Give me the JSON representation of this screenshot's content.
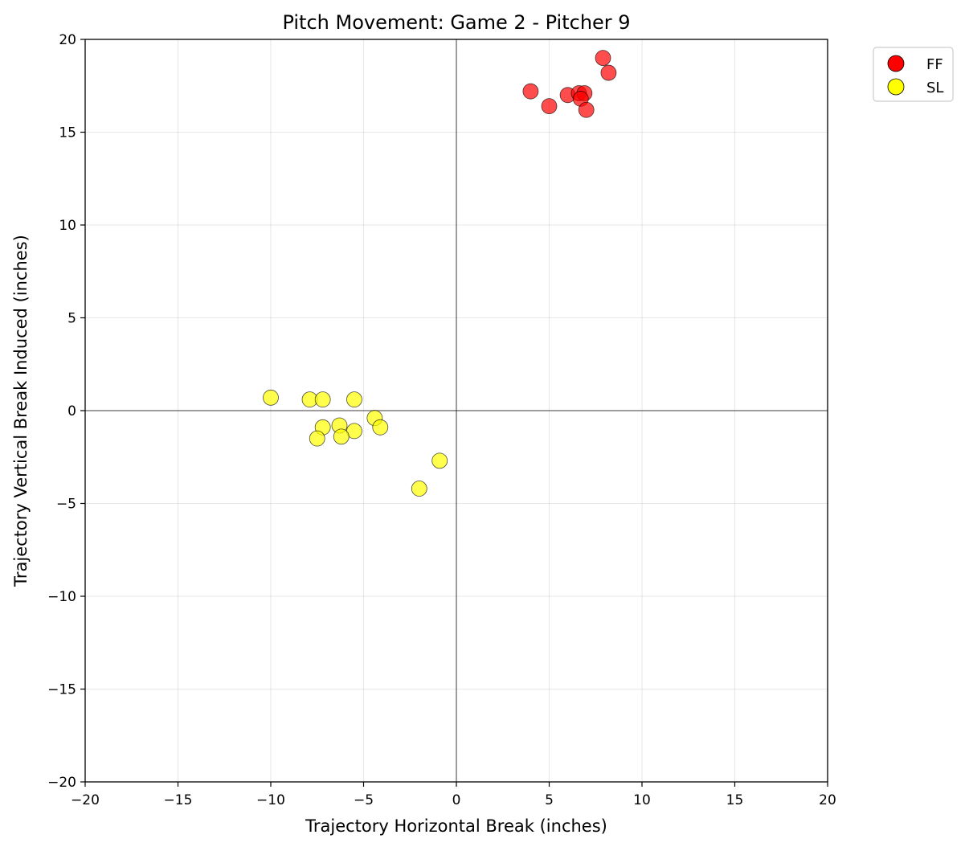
{
  "chart_data": {
    "type": "scatter",
    "title": "Pitch Movement: Game 2 - Pitcher 9",
    "xlabel": "Trajectory Horizontal Break (inches)",
    "ylabel": "Trajectory Vertical Break Induced (inches)",
    "xlim": [
      -20,
      20
    ],
    "ylim": [
      -20,
      20
    ],
    "xticks": [
      -20,
      -15,
      -10,
      -5,
      0,
      5,
      10,
      15,
      20
    ],
    "yticks": [
      -20,
      -15,
      -10,
      -5,
      0,
      5,
      10,
      15,
      20
    ],
    "grid": true,
    "legend_position": "outside-top-right",
    "series": [
      {
        "name": "FF",
        "color": "#ff0000",
        "points": [
          {
            "x": 7.9,
            "y": 19.0
          },
          {
            "x": 8.2,
            "y": 18.2
          },
          {
            "x": 4.0,
            "y": 17.2
          },
          {
            "x": 5.0,
            "y": 16.4
          },
          {
            "x": 6.0,
            "y": 17.0
          },
          {
            "x": 6.6,
            "y": 17.1
          },
          {
            "x": 6.9,
            "y": 17.1
          },
          {
            "x": 6.7,
            "y": 16.8
          },
          {
            "x": 7.0,
            "y": 16.2
          }
        ]
      },
      {
        "name": "SL",
        "color": "#ffff00",
        "points": [
          {
            "x": -10.0,
            "y": 0.7
          },
          {
            "x": -7.9,
            "y": 0.6
          },
          {
            "x": -7.2,
            "y": 0.6
          },
          {
            "x": -5.5,
            "y": 0.6
          },
          {
            "x": -4.4,
            "y": -0.4
          },
          {
            "x": -4.1,
            "y": -0.9
          },
          {
            "x": -7.2,
            "y": -0.9
          },
          {
            "x": -6.3,
            "y": -0.8
          },
          {
            "x": -5.5,
            "y": -1.1
          },
          {
            "x": -6.2,
            "y": -1.4
          },
          {
            "x": -7.5,
            "y": -1.5
          },
          {
            "x": -0.9,
            "y": -2.7
          },
          {
            "x": -2.0,
            "y": -4.2
          }
        ]
      }
    ]
  }
}
